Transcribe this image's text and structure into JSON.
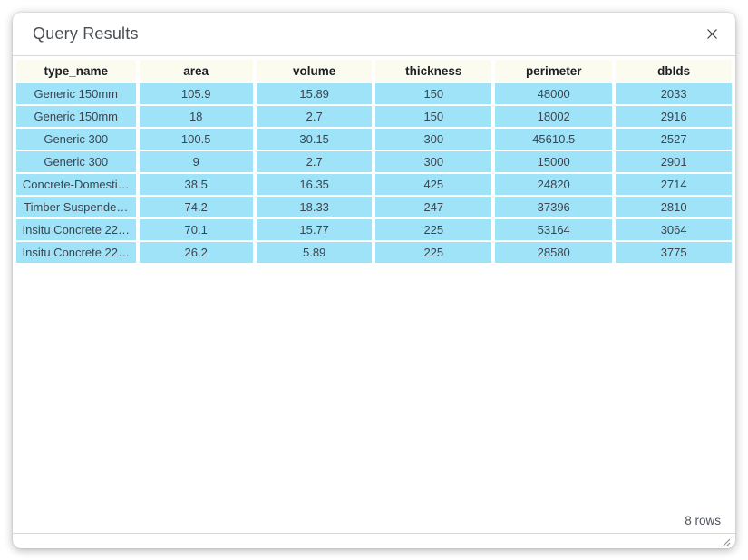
{
  "dialog": {
    "title": "Query Results",
    "row_count_label": "8 rows"
  },
  "table": {
    "columns": [
      "type_name",
      "area",
      "volume",
      "thickness",
      "perimeter",
      "dbIds"
    ],
    "rows": [
      [
        "Generic 150mm",
        "105.9",
        "15.89",
        "150",
        "48000",
        "2033"
      ],
      [
        "Generic 150mm",
        "18",
        "2.7",
        "150",
        "18002",
        "2916"
      ],
      [
        "Generic 300",
        "100.5",
        "30.15",
        "300",
        "45610.5",
        "2527"
      ],
      [
        "Generic 300",
        "9",
        "2.7",
        "300",
        "15000",
        "2901"
      ],
      [
        "Concrete-Domesti…",
        "38.5",
        "16.35",
        "425",
        "24820",
        "2714"
      ],
      [
        "Timber Suspende…",
        "74.2",
        "18.33",
        "247",
        "37396",
        "2810"
      ],
      [
        "Insitu Concrete 22…",
        "70.1",
        "15.77",
        "225",
        "53164",
        "3064"
      ],
      [
        "Insitu Concrete 22…",
        "26.2",
        "5.89",
        "225",
        "28580",
        "3775"
      ]
    ]
  },
  "icons": {
    "close": "✕",
    "resize_grip": "⟋⟋"
  },
  "colors": {
    "cell_bg": "#9fe3f8",
    "header_bg": "#fbfbef",
    "divider": "#d8d8d8",
    "title_text": "#4b4f55",
    "cell_text": "#3d4450",
    "header_text": "#1c2025"
  }
}
